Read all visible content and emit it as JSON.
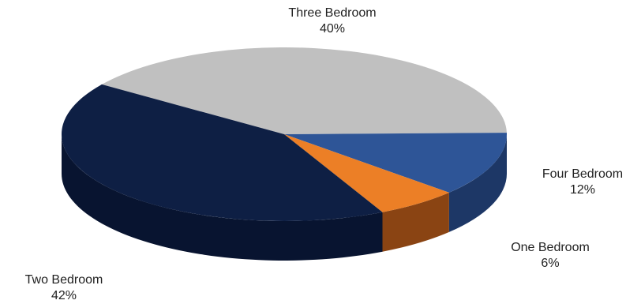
{
  "chart_data": {
    "type": "pie",
    "style": "3d",
    "slices": [
      {
        "label": "Three Bedroom",
        "value": 40,
        "display": "40%",
        "color": "#c0c0c0",
        "side_color": "#8e8e8e"
      },
      {
        "label": "Four Bedroom",
        "value": 12,
        "display": "12%",
        "color": "#2e5597",
        "side_color": "#1d3766"
      },
      {
        "label": "One Bedroom",
        "value": 6,
        "display": "6%",
        "color": "#ec7f26",
        "side_color": "#8a4413"
      },
      {
        "label": "Two Bedroom",
        "value": 42,
        "display": "42%",
        "color": "#0e1f44",
        "side_color": "#081430"
      }
    ]
  }
}
